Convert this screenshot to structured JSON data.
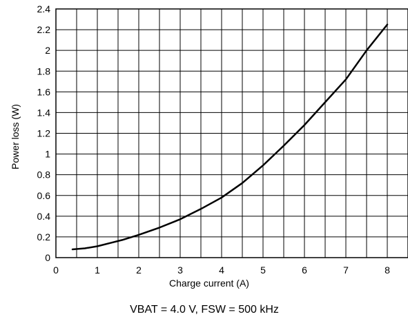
{
  "chart_data": {
    "type": "line",
    "title": "",
    "caption": "VBAT = 4.0 V, FSW = 500 kHz",
    "xlabel": "Charge current (A)",
    "ylabel": "Power loss (W)",
    "xlim": [
      0,
      8.5
    ],
    "ylim": [
      0,
      2.4
    ],
    "x_ticks": [
      0,
      1,
      2,
      3,
      4,
      5,
      6,
      7,
      8
    ],
    "x_tick_labels": [
      "0",
      "1",
      "2",
      "3",
      "4",
      "5",
      "6",
      "7",
      "8"
    ],
    "y_ticks": [
      0,
      0.2,
      0.4,
      0.6,
      0.8,
      1,
      1.2,
      1.4,
      1.6,
      1.8,
      2,
      2.2,
      2.4
    ],
    "y_tick_labels": [
      "0",
      "0.2",
      "0.4",
      "0.6",
      "0.8",
      "1",
      "1.2",
      "1.4",
      "1.6",
      "1.8",
      "2",
      "2.2",
      "2.4"
    ],
    "x_grid_step": 0.5,
    "grid": true,
    "series": [
      {
        "color": "#000000",
        "x": [
          0.4,
          0.7,
          1.0,
          1.3,
          1.6,
          2.0,
          2.5,
          3.0,
          3.5,
          4.0,
          4.5,
          5.0,
          5.5,
          6.0,
          6.5,
          7.0,
          7.5,
          8.0
        ],
        "y": [
          0.08,
          0.09,
          0.11,
          0.14,
          0.17,
          0.22,
          0.29,
          0.37,
          0.47,
          0.58,
          0.72,
          0.89,
          1.08,
          1.28,
          1.5,
          1.72,
          2.0,
          2.25
        ]
      }
    ]
  }
}
